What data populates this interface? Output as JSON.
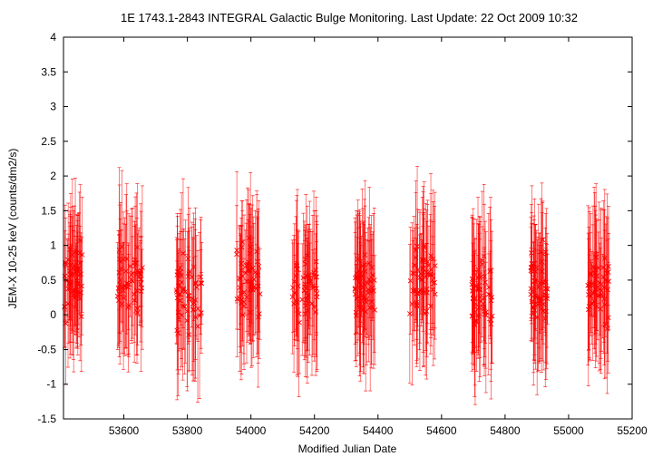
{
  "chart_data": {
    "type": "scatter",
    "title": "1E 1743.1-2843   INTEGRAL Galactic Bulge Monitoring.  Last Update: 22 Oct 2009 10:32",
    "xlabel": "Modified Julian Date",
    "ylabel": "JEM-X 10-25 keV (counts/dm2/s)",
    "xlim": [
      53410,
      55200
    ],
    "ylim": [
      -1.5,
      4
    ],
    "x_ticks": [
      53600,
      53800,
      54000,
      54200,
      54400,
      54600,
      54800,
      55000,
      55200
    ],
    "x_tick_labels": [
      "53600",
      "53800",
      "54000",
      "54200",
      "54400",
      "54600",
      "54800",
      "55000",
      "55200"
    ],
    "y_ticks": [
      -1.5,
      -1,
      -0.5,
      0,
      0.5,
      1,
      1.5,
      2,
      2.5,
      3,
      3.5,
      4
    ],
    "y_tick_labels": [
      "-1.5",
      "-1",
      "-0.5",
      "0",
      "0.5",
      "1",
      "1.5",
      "2",
      "2.5",
      "3",
      "3.5",
      "4"
    ],
    "grid": false,
    "legend": "none",
    "marker": "x",
    "error_bars": "vertical",
    "series_color": "#ff0000",
    "visibility_windows": [
      {
        "x_start": 53410,
        "x_end": 53470,
        "typical_y": 0.5
      },
      {
        "x_start": 53580,
        "x_end": 53660,
        "typical_y": 0.5
      },
      {
        "x_start": 53765,
        "x_end": 53845,
        "typical_y": 0.3
      },
      {
        "x_start": 53955,
        "x_end": 54030,
        "typical_y": 0.5
      },
      {
        "x_start": 54130,
        "x_end": 54210,
        "typical_y": 0.4
      },
      {
        "x_start": 54325,
        "x_end": 54390,
        "typical_y": 0.4
      },
      {
        "x_start": 54500,
        "x_end": 54580,
        "typical_y": 0.5
      },
      {
        "x_start": 54695,
        "x_end": 54760,
        "typical_y": 0.3
      },
      {
        "x_start": 54880,
        "x_end": 54935,
        "typical_y": 0.4
      },
      {
        "x_start": 55060,
        "x_end": 55130,
        "typical_y": 0.4
      }
    ]
  }
}
